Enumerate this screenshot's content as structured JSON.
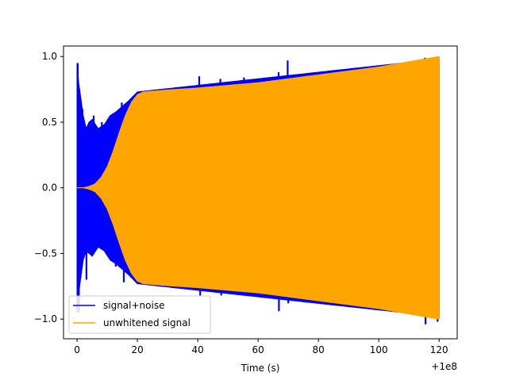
{
  "chart_data": {
    "type": "line",
    "title": "",
    "xlabel": "Time (s)",
    "ylabel": "",
    "x_offset_label": "+1e8",
    "xlim": [
      -4.5,
      126.0
    ],
    "ylim": [
      -1.15,
      1.08
    ],
    "x_ticks": [
      0,
      20,
      40,
      60,
      80,
      100,
      120
    ],
    "x_tick_labels": [
      "0",
      "20",
      "40",
      "60",
      "80",
      "100",
      "120"
    ],
    "y_ticks": [
      -1.0,
      -0.5,
      0.0,
      0.5,
      1.0
    ],
    "y_tick_labels": [
      "−1.0",
      "−0.5",
      "0.0",
      "0.5",
      "1.0"
    ],
    "grid": false,
    "legend": {
      "position": "lower-left",
      "entries": [
        {
          "label": "signal+noise",
          "color": "#0000ff"
        },
        {
          "label": "unwhitened signal",
          "color": "#ffa500"
        }
      ]
    },
    "series": [
      {
        "name": "signal+noise",
        "color": "#0000ff",
        "style": "dense oscillation envelope",
        "x": [
          0,
          0.5,
          1,
          2,
          3,
          4,
          5,
          7,
          9,
          11,
          13,
          15,
          17,
          20,
          40,
          60,
          80,
          100,
          120
        ],
        "upper": [
          0.95,
          0.8,
          0.72,
          0.55,
          0.45,
          0.5,
          0.52,
          0.45,
          0.48,
          0.55,
          0.58,
          0.62,
          0.66,
          0.73,
          0.78,
          0.83,
          0.88,
          0.93,
          0.98
        ],
        "lower": [
          -0.95,
          -0.8,
          -0.72,
          -0.55,
          -0.48,
          -0.5,
          -0.52,
          -0.45,
          -0.48,
          -0.55,
          -0.58,
          -0.62,
          -0.66,
          -0.73,
          -0.78,
          -0.83,
          -0.88,
          -0.93,
          -0.98
        ],
        "spikes": [
          {
            "x": 0.2,
            "y": 0.95
          },
          {
            "x": 0.6,
            "y": -0.95
          },
          {
            "x": 1.8,
            "y": 0.6
          },
          {
            "x": 3.1,
            "y": -0.7
          },
          {
            "x": 5.5,
            "y": 0.55
          },
          {
            "x": 8.2,
            "y": 0.5
          },
          {
            "x": 10.5,
            "y": 0.45
          },
          {
            "x": 12.8,
            "y": -0.6
          },
          {
            "x": 14.8,
            "y": 0.65
          },
          {
            "x": 15.5,
            "y": -0.72
          },
          {
            "x": 40.5,
            "y": 0.85
          },
          {
            "x": 40.8,
            "y": -0.82
          },
          {
            "x": 47.5,
            "y": 0.83
          },
          {
            "x": 47.8,
            "y": -0.82
          },
          {
            "x": 55.3,
            "y": 0.84
          },
          {
            "x": 66.8,
            "y": 0.88
          },
          {
            "x": 66.9,
            "y": -0.94
          },
          {
            "x": 69.8,
            "y": 0.97
          },
          {
            "x": 70.0,
            "y": -0.88
          },
          {
            "x": 115.3,
            "y": 0.99
          },
          {
            "x": 115.5,
            "y": -1.04
          },
          {
            "x": 118.2,
            "y": 0.99
          },
          {
            "x": 119.5,
            "y": -1.02
          }
        ]
      },
      {
        "name": "unwhitened signal",
        "color": "#ffa500",
        "style": "dense oscillation envelope",
        "x": [
          0,
          2,
          4,
          6,
          8,
          10,
          12,
          14,
          16,
          18,
          20,
          22,
          30,
          40,
          50,
          60,
          70,
          80,
          90,
          100,
          110,
          120
        ],
        "upper": [
          0.0,
          0.0,
          0.01,
          0.03,
          0.08,
          0.16,
          0.28,
          0.42,
          0.55,
          0.65,
          0.71,
          0.73,
          0.745,
          0.76,
          0.78,
          0.8,
          0.83,
          0.86,
          0.89,
          0.92,
          0.96,
          1.0
        ],
        "lower": [
          0.0,
          0.0,
          -0.01,
          -0.03,
          -0.08,
          -0.16,
          -0.28,
          -0.42,
          -0.55,
          -0.65,
          -0.71,
          -0.73,
          -0.745,
          -0.76,
          -0.78,
          -0.8,
          -0.83,
          -0.86,
          -0.89,
          -0.92,
          -0.96,
          -1.0
        ]
      }
    ]
  }
}
